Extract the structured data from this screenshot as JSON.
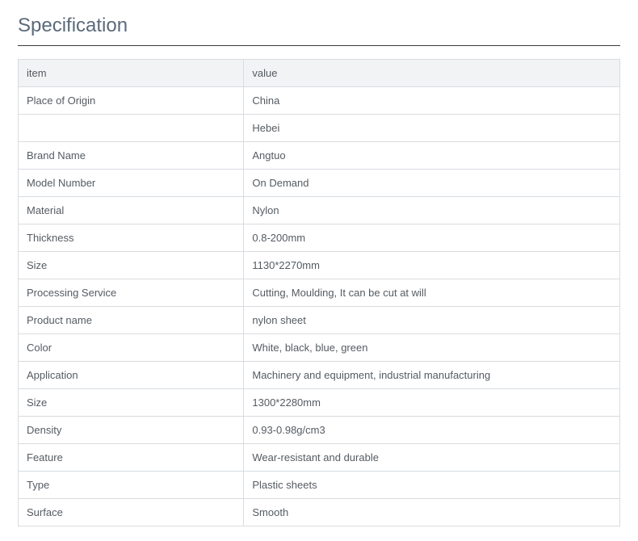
{
  "title": "Specification",
  "table": {
    "columns": [
      "item",
      "value"
    ],
    "rows": [
      [
        "Place of Origin",
        "China"
      ],
      [
        "",
        "Hebei"
      ],
      [
        "Brand Name",
        "Angtuo"
      ],
      [
        "Model Number",
        "On Demand"
      ],
      [
        "Material",
        "Nylon"
      ],
      [
        "Thickness",
        "0.8-200mm"
      ],
      [
        "Size",
        "1130*2270mm"
      ],
      [
        "Processing Service",
        "Cutting, Moulding, It can be cut at will"
      ],
      [
        "Product name",
        "nylon sheet"
      ],
      [
        "Color",
        "White, black, blue, green"
      ],
      [
        "Application",
        "Machinery and equipment, industrial manufacturing"
      ],
      [
        "Size",
        "1300*2280mm"
      ],
      [
        "Density",
        "0.93-0.98g/cm3"
      ],
      [
        "Feature",
        "Wear-resistant and durable"
      ],
      [
        "Type",
        "Plastic sheets"
      ],
      [
        "Surface",
        "Smooth"
      ]
    ]
  },
  "styles": {
    "title_color": "#5a6a7a",
    "title_fontsize": 24,
    "title_border_color": "#3a3a3a",
    "cell_border_color": "#d8dce0",
    "cell_text_color": "#555b62",
    "cell_fontsize": 13,
    "header_bg": "#f1f3f5",
    "col_widths": [
      "37.5%",
      "62.5%"
    ]
  }
}
